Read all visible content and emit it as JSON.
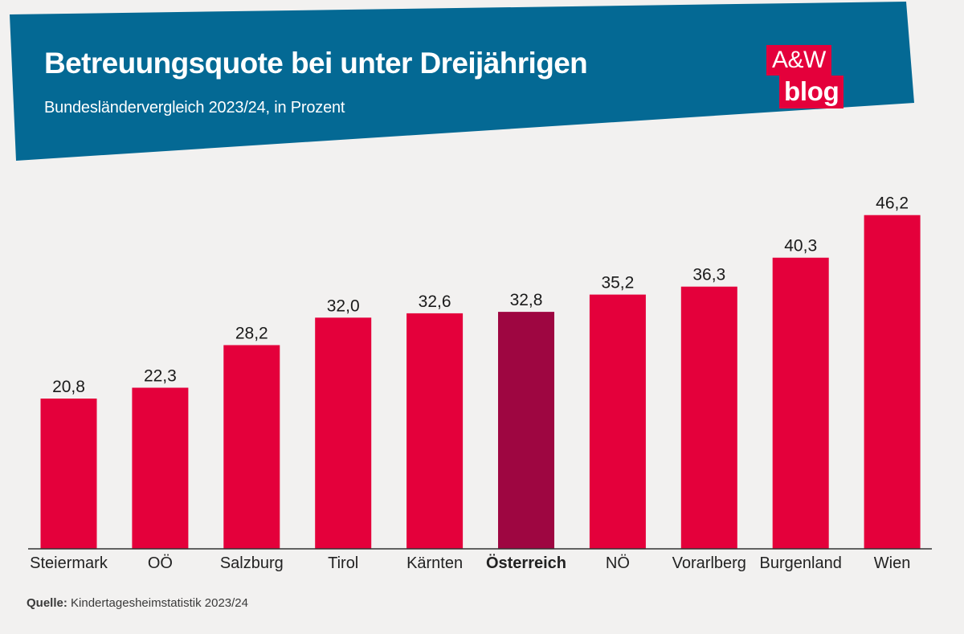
{
  "header": {
    "title": "Betreuungsquote bei unter Dreijährigen",
    "subtitle": "Bundesländervergleich 2023/24, in Prozent"
  },
  "logo": {
    "line1": "A&W",
    "line2": "blog"
  },
  "source": {
    "label": "Quelle:",
    "text": "Kindertagesheimstatistik 2023/24"
  },
  "colors": {
    "banner": "#046994",
    "bar": "#e4003b",
    "bar_highlight": "#9e0641",
    "background": "#f2f1f0",
    "axis": "#333333"
  },
  "chart_data": {
    "type": "bar",
    "title": "Betreuungsquote bei unter Dreijährigen",
    "subtitle": "Bundesländervergleich 2023/24, in Prozent",
    "xlabel": "",
    "ylabel": "",
    "ylim": [
      0,
      50
    ],
    "grid": false,
    "categories": [
      "Steiermark",
      "OÖ",
      "Salzburg",
      "Tirol",
      "Kärnten",
      "Österreich",
      "NÖ",
      "Vorarlberg",
      "Burgenland",
      "Wien"
    ],
    "values": [
      20.8,
      22.3,
      28.2,
      32.0,
      32.6,
      32.8,
      35.2,
      36.3,
      40.3,
      46.2
    ],
    "value_labels": [
      "20,8",
      "22,3",
      "28,2",
      "32,0",
      "32,6",
      "32,8",
      "35,2",
      "36,3",
      "40,3",
      "46,2"
    ],
    "highlight": "Österreich"
  }
}
